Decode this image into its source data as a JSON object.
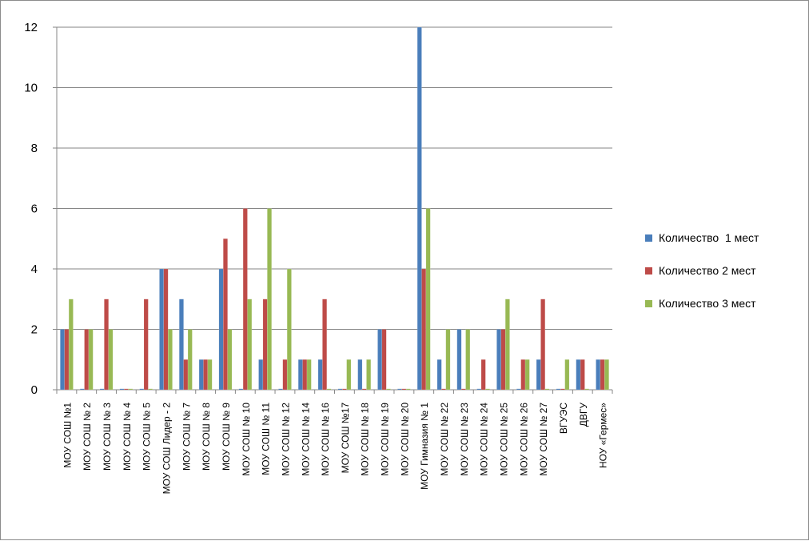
{
  "chart_data": {
    "type": "bar",
    "title": "",
    "xlabel": "",
    "ylabel": "",
    "ylim": [
      0,
      12
    ],
    "yticks": [
      0,
      2,
      4,
      6,
      8,
      10,
      12
    ],
    "grid": true,
    "legend_position": "right",
    "categories": [
      "МОУ СОШ №1",
      "МОУ СОШ № 2",
      "МОУ СОШ № 3",
      "МОУ СОШ № 4",
      "МОУ СОШ № 5",
      "МОУ СОШ Лидер - 2",
      "МОУ СОШ № 7",
      "МОУ СОШ № 8",
      "МОУ СОШ № 9",
      "МОУ СОШ № 10",
      "МОУ СОШ № 11",
      "МОУ СОШ № 12",
      "МОУ СОШ № 14",
      "МОУ СОШ № 16",
      "МОУ СОШ №17",
      "МОУ СОШ № 18",
      "МОУ СОШ № 19",
      "МОУ СОШ № 20",
      "МОУ Гимназия № 1",
      "МОУ СОШ № 22",
      "МОУ СОШ № 23",
      "МОУ СОШ № 24",
      "МОУ СОШ № 25",
      "МОУ СОШ № 26",
      "МОУ СОШ № 27",
      "ВГУЭС",
      "ДВГУ",
      "НОУ «Гермес»"
    ],
    "series": [
      {
        "name": "Количество  1 мест",
        "color": "#4a7ebb",
        "values": [
          2,
          0,
          0,
          0,
          0,
          4,
          3,
          1,
          4,
          0,
          1,
          0,
          1,
          1,
          0,
          1,
          2,
          0,
          12,
          1,
          2,
          0,
          2,
          0,
          1,
          0,
          1,
          1
        ]
      },
      {
        "name": "Количество 2 мест",
        "color": "#be4b48",
        "values": [
          2,
          2,
          3,
          0,
          3,
          4,
          1,
          1,
          5,
          6,
          3,
          1,
          1,
          3,
          0,
          0,
          2,
          0,
          4,
          0,
          0,
          1,
          2,
          1,
          3,
          0,
          1,
          1
        ]
      },
      {
        "name": "Количество 3 мест",
        "color": "#98b954",
        "values": [
          3,
          2,
          2,
          0,
          0,
          2,
          2,
          1,
          2,
          3,
          6,
          4,
          1,
          0,
          1,
          1,
          0,
          0,
          6,
          2,
          2,
          0,
          3,
          1,
          0,
          1,
          0,
          1
        ]
      }
    ]
  }
}
